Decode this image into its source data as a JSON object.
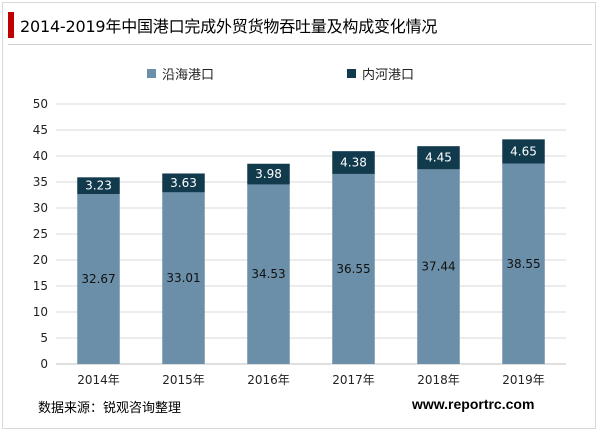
{
  "title": "2014-2019年中国港口完成外贸货物吞吐量及构成变化情况",
  "legend": [
    {
      "label": "沿海港口",
      "color": "#6b8fa8"
    },
    {
      "label": "内河港口",
      "color": "#113a4d"
    }
  ],
  "source_text": "数据来源：锐观咨询整理",
  "site_text": "www.reportrc.com",
  "colors": {
    "accent": "#c00000",
    "coastal": "#6b8fa8",
    "inland": "#113a4d",
    "grid": "#d9d9d9"
  },
  "chart_data": {
    "type": "bar",
    "stacked": true,
    "categories": [
      "2014年",
      "2015年",
      "2016年",
      "2017年",
      "2018年",
      "2019年"
    ],
    "series": [
      {
        "name": "沿海港口",
        "values": [
          32.67,
          33.01,
          34.53,
          36.55,
          37.44,
          38.55
        ],
        "value_labels": [
          "32.67",
          "33.01",
          "34.53",
          "36.55",
          "37.44",
          "38.55"
        ]
      },
      {
        "name": "内河港口",
        "values": [
          3.23,
          3.63,
          3.98,
          4.38,
          4.45,
          4.65
        ],
        "value_labels": [
          "3.23",
          "3.63",
          "3.98",
          "4.38",
          "4.45",
          "4.65"
        ]
      }
    ],
    "ylim": [
      0,
      50
    ],
    "yticks": [
      0,
      5,
      10,
      15,
      20,
      25,
      30,
      35,
      40,
      45,
      50
    ],
    "grid": true,
    "legend_position": "top"
  }
}
